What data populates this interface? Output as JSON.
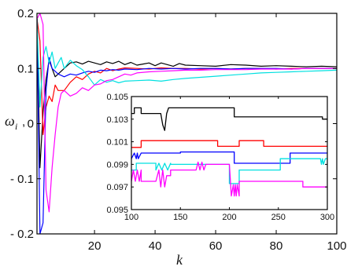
{
  "chart_data": [
    {
      "type": "line",
      "xlabel": "k",
      "ylabel": "ω",
      "ylabel_subscript": "i",
      "xlim": [
        1,
        100
      ],
      "ylim": [
        -0.2,
        0.2
      ],
      "x_ticks": [
        20,
        40,
        60,
        80,
        100
      ],
      "x_tick_labels": [
        "20",
        "40",
        "60",
        "80",
        "100"
      ],
      "y_ticks": [
        0.2,
        0.1,
        0,
        -0.1,
        -0.2
      ],
      "y_tick_labels": [
        "0.2",
        "0.1",
        "0",
        "- 0.1",
        "- 0.2"
      ],
      "grid": false,
      "series": [
        {
          "color": "#000000",
          "x": [
            1,
            2,
            3,
            4,
            5,
            6,
            7,
            8,
            10,
            12,
            14,
            16,
            18,
            20,
            22,
            24,
            26,
            28,
            30,
            32,
            34,
            36,
            38,
            40,
            42,
            44,
            46,
            48,
            50,
            55,
            60,
            65,
            70,
            75,
            80,
            85,
            90,
            95,
            100
          ],
          "values": [
            0.19,
            -0.08,
            0.02,
            0.08,
            0.115,
            0.1,
            0.085,
            0.09,
            0.1,
            0.11,
            0.112,
            0.108,
            0.113,
            0.11,
            0.107,
            0.112,
            0.109,
            0.113,
            0.107,
            0.111,
            0.106,
            0.108,
            0.11,
            0.105,
            0.11,
            0.107,
            0.104,
            0.109,
            0.106,
            0.105,
            0.104,
            0.107,
            0.106,
            0.104,
            0.105,
            0.104,
            0.103,
            0.104,
            0.103
          ]
        },
        {
          "color": "#ff0000",
          "x": [
            1,
            2,
            3,
            4,
            5,
            6,
            7,
            8,
            10,
            12,
            14,
            16,
            18,
            20,
            22,
            24,
            26,
            28,
            30,
            34,
            38,
            42,
            46,
            50,
            55,
            60,
            65,
            70,
            75,
            80,
            85,
            90,
            95,
            100
          ],
          "values": [
            0.19,
            0.15,
            -0.02,
            0.03,
            0.05,
            0.04,
            0.07,
            0.06,
            0.06,
            0.075,
            0.085,
            0.08,
            0.09,
            0.095,
            0.092,
            0.1,
            0.096,
            0.099,
            0.101,
            0.1,
            0.099,
            0.101,
            0.1,
            0.1,
            0.099,
            0.1,
            0.099,
            0.1,
            0.1,
            0.099,
            0.1,
            0.1,
            0.1,
            0.1
          ]
        },
        {
          "color": "#0000ff",
          "x": [
            1,
            2,
            3,
            4,
            5,
            6,
            7,
            8,
            10,
            12,
            14,
            16,
            18,
            20,
            22,
            24,
            26,
            28,
            30,
            34,
            38,
            42,
            46,
            50,
            55,
            60,
            65,
            70,
            75,
            80,
            85,
            90,
            95,
            100
          ],
          "values": [
            0.19,
            -0.2,
            -0.18,
            0.06,
            0.12,
            0.1,
            0.095,
            0.09,
            0.085,
            0.09,
            0.088,
            0.092,
            0.095,
            0.093,
            0.097,
            0.096,
            0.098,
            0.097,
            0.099,
            0.098,
            0.1,
            0.099,
            0.1,
            0.099,
            0.1,
            0.1,
            0.099,
            0.1,
            0.1,
            0.1,
            0.099,
            0.1,
            0.1,
            0.1
          ]
        },
        {
          "color": "#00e0e0",
          "x": [
            1,
            2,
            3,
            4,
            5,
            6,
            7,
            8,
            9,
            10,
            12,
            14,
            16,
            18,
            20,
            22,
            24,
            26,
            28,
            30,
            34,
            38,
            42,
            46,
            50,
            55,
            60,
            65,
            70,
            75,
            80,
            85,
            90,
            95,
            100
          ],
          "values": [
            0.19,
            0.03,
            0.12,
            0.14,
            0.11,
            0.13,
            0.1,
            0.11,
            0.12,
            0.1,
            0.115,
            0.105,
            0.098,
            0.085,
            0.07,
            0.08,
            0.075,
            0.078,
            0.074,
            0.077,
            0.078,
            0.079,
            0.077,
            0.08,
            0.082,
            0.084,
            0.086,
            0.088,
            0.09,
            0.092,
            0.093,
            0.094,
            0.095,
            0.096,
            0.097
          ]
        },
        {
          "color": "#ff00ff",
          "x": [
            1,
            2,
            3,
            4,
            5,
            6,
            7,
            8,
            9,
            10,
            12,
            14,
            16,
            18,
            20,
            22,
            24,
            26,
            28,
            30,
            32,
            34,
            38,
            42,
            46,
            50,
            55,
            60,
            65,
            70,
            75,
            80,
            85,
            90,
            95,
            100
          ],
          "values": [
            0.19,
            0.2,
            0.18,
            -0.12,
            -0.16,
            -0.08,
            -0.02,
            0.03,
            0.055,
            0.06,
            0.05,
            0.055,
            0.065,
            0.06,
            0.07,
            0.072,
            0.078,
            0.08,
            0.085,
            0.09,
            0.088,
            0.092,
            0.094,
            0.095,
            0.096,
            0.097,
            0.097,
            0.098,
            0.098,
            0.098,
            0.099,
            0.099,
            0.099,
            0.1,
            0.1,
            0.1
          ]
        }
      ]
    },
    {
      "type": "line",
      "xlim": [
        100,
        300
      ],
      "ylim": [
        0.095,
        0.105
      ],
      "x_ticks": [
        100,
        150,
        200,
        250,
        300
      ],
      "x_tick_labels": [
        "100",
        "150",
        "200",
        "250",
        "300"
      ],
      "y_ticks": [
        0.105,
        0.103,
        0.101,
        0.099,
        0.097,
        0.095
      ],
      "y_tick_labels": [
        "0.105",
        "0.103",
        "0.101",
        "0.099",
        "0.097",
        "0.095"
      ],
      "grid": false,
      "series": [
        {
          "color": "#000000",
          "x": [
            100,
            103,
            103,
            110,
            110,
            130,
            132,
            134,
            136,
            138,
            205,
            205,
            295,
            295,
            300
          ],
          "values": [
            0.1035,
            0.1035,
            0.104,
            0.104,
            0.1035,
            0.1035,
            0.1025,
            0.102,
            0.1035,
            0.104,
            0.104,
            0.1032,
            0.1032,
            0.103,
            0.103
          ]
        },
        {
          "color": "#ff0000",
          "x": [
            100,
            110,
            110,
            188,
            188,
            210,
            210,
            235,
            235,
            300
          ],
          "values": [
            0.1005,
            0.1005,
            0.1011,
            0.1011,
            0.1006,
            0.1006,
            0.1011,
            0.1011,
            0.1006,
            0.1006
          ]
        },
        {
          "color": "#0000ff",
          "x": [
            100,
            103,
            105,
            106,
            107,
            110,
            110,
            150,
            150,
            205,
            205,
            262,
            262,
            265,
            265,
            300
          ],
          "values": [
            0.0995,
            0.1,
            0.0995,
            0.1,
            0.0995,
            0.1,
            0.1,
            0.1,
            0.1001,
            0.1001,
            0.0991,
            0.0991,
            0.1,
            0.1,
            0.1,
            0.1
          ]
        },
        {
          "color": "#00e0e0",
          "x": [
            100,
            105,
            105,
            125,
            125,
            128,
            131,
            134,
            137,
            140,
            140,
            200,
            200,
            210,
            210,
            252,
            252,
            293,
            294,
            295,
            296,
            298,
            300
          ],
          "values": [
            0.0985,
            0.0985,
            0.0991,
            0.0991,
            0.0985,
            0.0991,
            0.0985,
            0.0991,
            0.0985,
            0.0991,
            0.099,
            0.099,
            0.0973,
            0.0973,
            0.0985,
            0.0985,
            0.0995,
            0.0995,
            0.099,
            0.0995,
            0.099,
            0.0995,
            0.0995
          ]
        },
        {
          "color": "#ff00ff",
          "x": [
            100,
            102,
            104,
            106,
            108,
            110,
            110,
            125,
            128,
            130,
            132,
            134,
            136,
            140,
            140,
            166,
            168,
            170,
            172,
            174,
            176,
            200,
            202,
            204,
            205,
            206,
            207,
            208,
            210,
            210,
            275,
            275,
            300
          ],
          "values": [
            0.0975,
            0.0985,
            0.0975,
            0.0985,
            0.0975,
            0.0985,
            0.0975,
            0.0975,
            0.0985,
            0.097,
            0.0985,
            0.097,
            0.098,
            0.098,
            0.0985,
            0.0985,
            0.0992,
            0.0985,
            0.0992,
            0.0985,
            0.099,
            0.099,
            0.0962,
            0.0972,
            0.0962,
            0.0972,
            0.0962,
            0.0972,
            0.0962,
            0.0975,
            0.0975,
            0.097,
            0.097
          ]
        }
      ]
    }
  ]
}
